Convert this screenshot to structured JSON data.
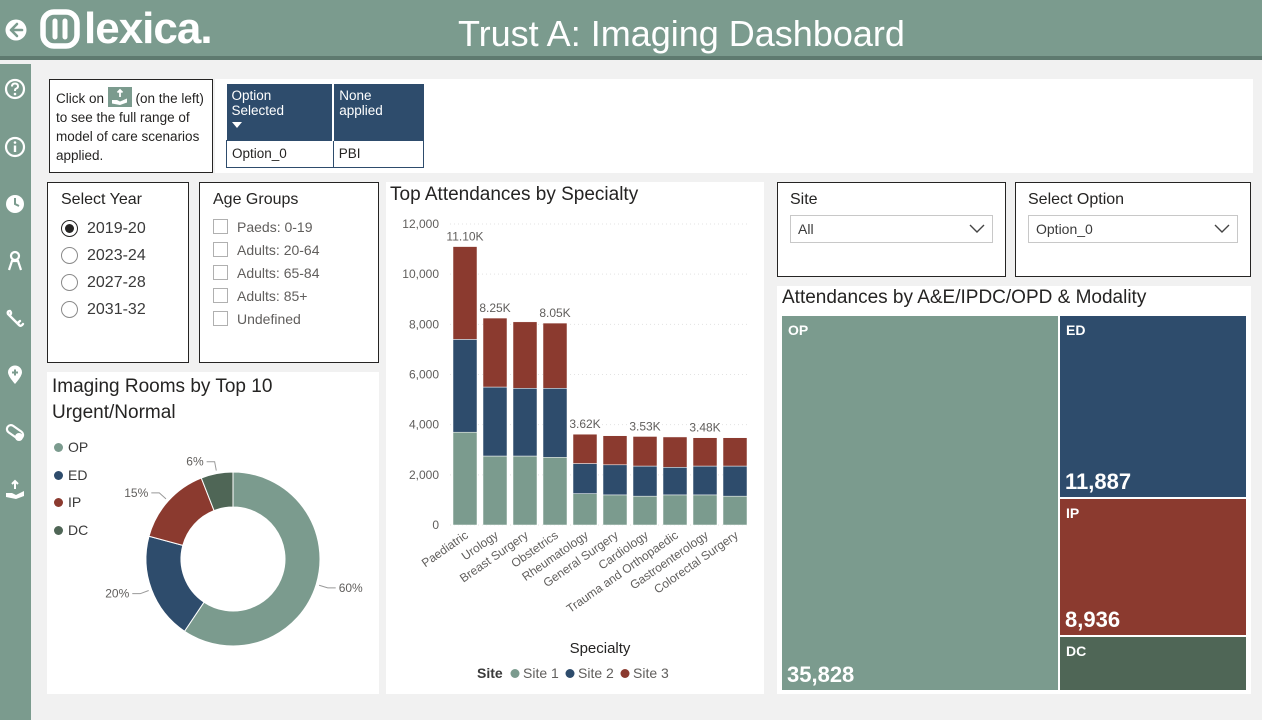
{
  "header": {
    "logo_text": "lexica.",
    "title": "Trust A: Imaging Dashboard"
  },
  "sidebar": {
    "icons": [
      "help-icon",
      "info-icon",
      "clock-icon",
      "person-icon",
      "bone-icon",
      "location-pin-icon",
      "pill-icon",
      "hand-icon"
    ]
  },
  "info_box": {
    "part1": "Click on",
    "part2": "(on the left) to see the full range of model of care scenarios applied."
  },
  "options_table": {
    "headers": [
      "Option Selected",
      "None applied"
    ],
    "row": [
      "Option_0",
      "PBI"
    ]
  },
  "year_slicer": {
    "title": "Select Year",
    "options": [
      "2019-20",
      "2023-24",
      "2027-28",
      "2031-32"
    ],
    "selected": "2019-20"
  },
  "age_slicer": {
    "title": "Age Groups",
    "options": [
      "Paeds: 0-19",
      "Adults: 20-64",
      "Adults: 65-84",
      "Adults: 85+",
      "Undefined"
    ]
  },
  "site_filter": {
    "title": "Site",
    "value": "All"
  },
  "option_filter": {
    "title": "Select Option",
    "value": "Option_0"
  },
  "donut": {
    "title": "Imaging Rooms by Top 10 Urgent/Normal",
    "legend": [
      "OP",
      "ED",
      "IP",
      "DC"
    ]
  },
  "bar": {
    "title": "Top Attendances by Specialty"
  },
  "treemap": {
    "title": "Attendances by A&E/IPDC/OPD & Modality",
    "tiles": [
      {
        "label": "OP",
        "value": "35,828"
      },
      {
        "label": "ED",
        "value": "11,887"
      },
      {
        "label": "IP",
        "value": "8,936"
      },
      {
        "label": "DC",
        "value": ""
      }
    ]
  },
  "colors": {
    "header": "#7b9b8e",
    "site1": "#7b9b8e",
    "site2": "#2e4c6c",
    "site3": "#8b3a2f",
    "dc": "#4f6656"
  },
  "chart_data": [
    {
      "type": "pie",
      "title": "Imaging Rooms by Top 10 Urgent/Normal",
      "categories": [
        "OP",
        "ED",
        "IP",
        "DC"
      ],
      "values": [
        60,
        20,
        15,
        6
      ],
      "labels": [
        "60%",
        "20%",
        "15%",
        "6%"
      ],
      "colors": [
        "#7b9b8e",
        "#2e4c6c",
        "#8b3a2f",
        "#4f6656"
      ],
      "legend": "left"
    },
    {
      "type": "bar",
      "stacked": true,
      "title": "Top Attendances by Specialty",
      "xlabel": "Specialty",
      "ylabel": "",
      "ylim": [
        0,
        12000
      ],
      "yticks": [
        0,
        2000,
        4000,
        6000,
        8000,
        10000,
        12000
      ],
      "ytick_labels": [
        "0",
        "2,000",
        "4,000",
        "6,000",
        "8,000",
        "10,000",
        "12,000"
      ],
      "categories": [
        "Paediatric",
        "Urology",
        "Breast Surgery",
        "Obstetrics",
        "Rheumatology",
        "General Surgery",
        "Cardiology",
        "Trauma and Orthopaedic",
        "Gastroenterology",
        "Colorectal Surgery"
      ],
      "legend_title": "Site",
      "series": [
        {
          "name": "Site 1",
          "color": "#7b9b8e",
          "values": [
            3700,
            2750,
            2750,
            2700,
            1250,
            1200,
            1150,
            1200,
            1200,
            1150
          ]
        },
        {
          "name": "Site 2",
          "color": "#2e4c6c",
          "values": [
            3700,
            2750,
            2700,
            2750,
            1200,
            1200,
            1200,
            1100,
            1150,
            1200
          ]
        },
        {
          "name": "Site 3",
          "color": "#8b3a2f",
          "values": [
            3700,
            2750,
            2650,
            2600,
            1170,
            1160,
            1180,
            1210,
            1130,
            1130
          ]
        }
      ],
      "totals": [
        11100,
        8250,
        8100,
        8050,
        3620,
        3560,
        3530,
        3510,
        3480,
        3480
      ],
      "data_labels": [
        "11.10K",
        "8.25K",
        "",
        "8.05K",
        "3.62K",
        "",
        "3.53K",
        "",
        "3.48K",
        ""
      ],
      "legend": "bottom"
    }
  ]
}
